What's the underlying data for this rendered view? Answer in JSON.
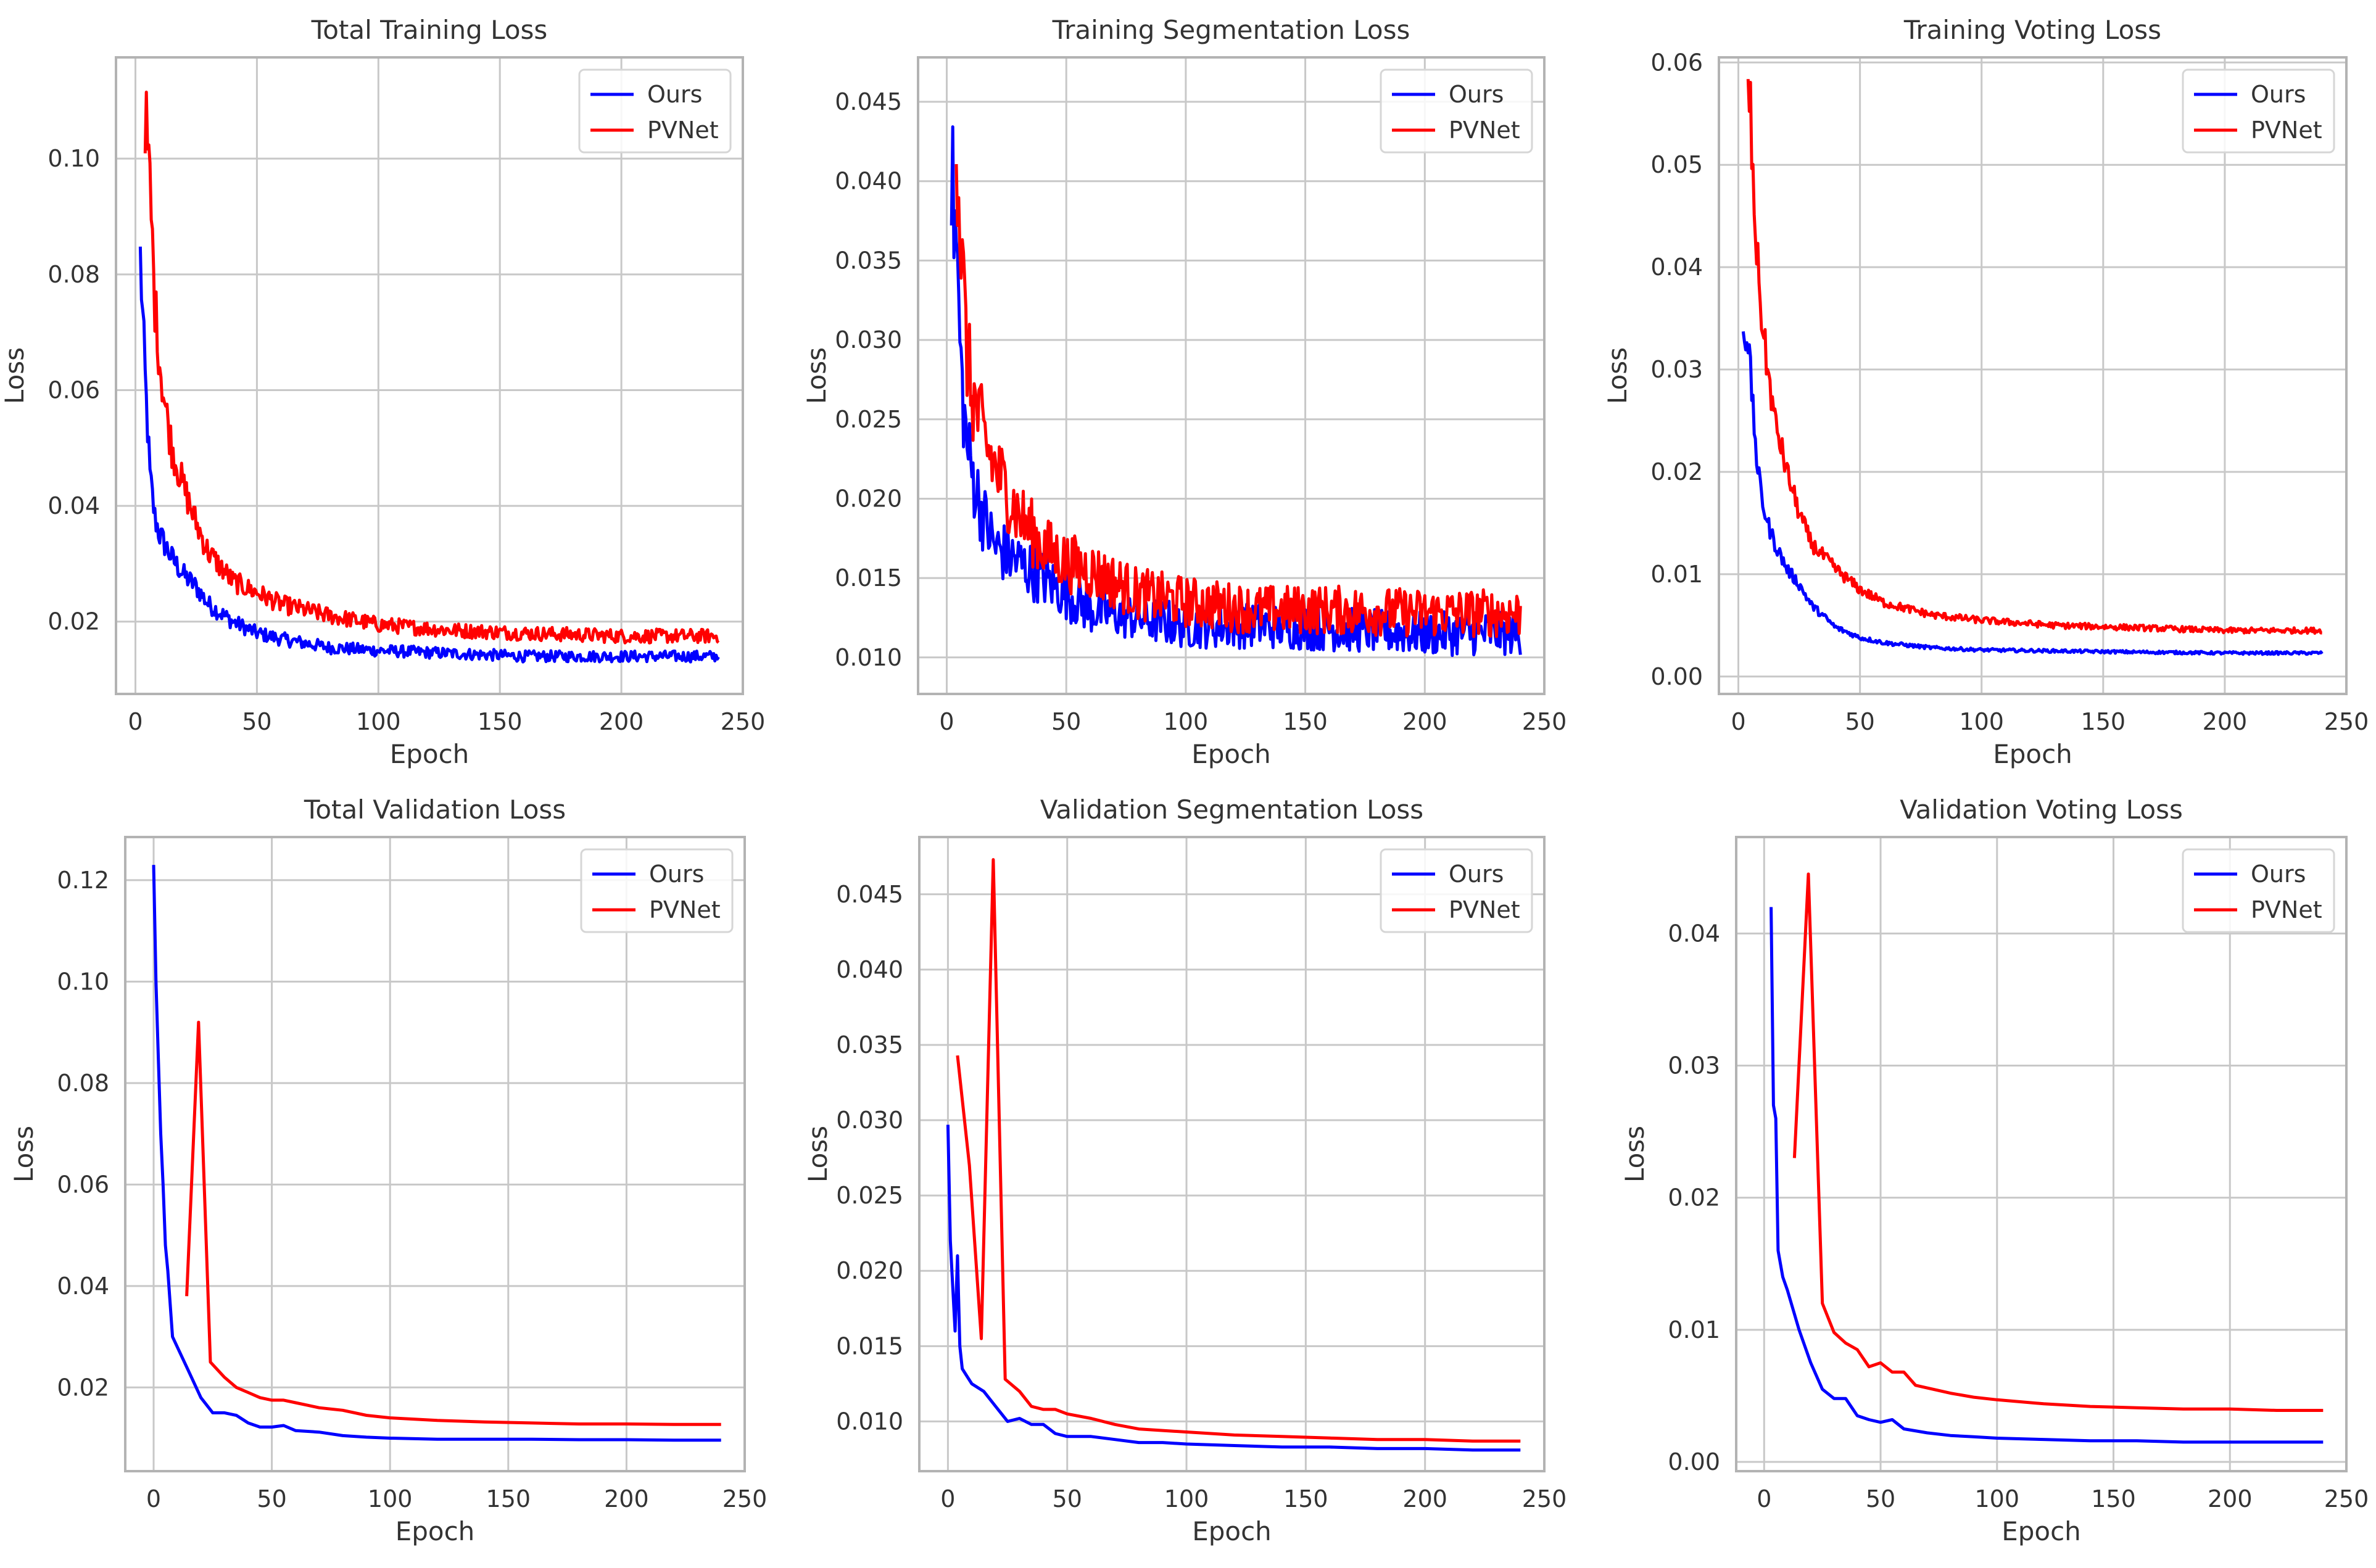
{
  "figure": {
    "colors": {
      "ours": "#0000ff",
      "pvnet": "#ff0000",
      "grid": "#c8c8c8",
      "frame": "#b3b3b3",
      "text": "#333333"
    }
  },
  "chart_data": [
    {
      "id": "total-training-loss",
      "type": "line",
      "title": "Total Training Loss",
      "xlabel": "Epoch",
      "ylabel": "Loss",
      "xlim": [
        -8,
        250
      ],
      "ylim": [
        0.0075,
        0.1175
      ],
      "xticks": [
        0,
        50,
        100,
        150,
        200,
        250
      ],
      "yticks": [
        0.02,
        0.04,
        0.06,
        0.08,
        0.1
      ],
      "ytick_labels": [
        "0.02",
        "0.04",
        "0.06",
        "0.08",
        "0.10"
      ],
      "legend": {
        "position": "top-right",
        "entries": [
          "Ours",
          "PVNet"
        ]
      },
      "noise": 0.07,
      "series": [
        {
          "name": "Ours",
          "color": "#0000ff",
          "x": [
            2,
            4,
            6,
            8,
            10,
            15,
            20,
            25,
            30,
            40,
            50,
            60,
            80,
            100,
            130,
            160,
            200,
            240
          ],
          "y": [
            0.083,
            0.062,
            0.045,
            0.038,
            0.035,
            0.031,
            0.028,
            0.026,
            0.023,
            0.02,
            0.018,
            0.017,
            0.0155,
            0.015,
            0.0145,
            0.014,
            0.014,
            0.014
          ]
        },
        {
          "name": "PVNet",
          "color": "#ff0000",
          "x": [
            4,
            6,
            8,
            10,
            12,
            15,
            20,
            25,
            30,
            40,
            50,
            60,
            80,
            100,
            130,
            160,
            200,
            240
          ],
          "y": [
            0.108,
            0.095,
            0.075,
            0.065,
            0.058,
            0.05,
            0.043,
            0.037,
            0.032,
            0.027,
            0.025,
            0.023,
            0.021,
            0.0195,
            0.0185,
            0.018,
            0.0175,
            0.0175
          ]
        }
      ]
    },
    {
      "id": "training-segmentation-loss",
      "type": "line",
      "title": "Training Segmentation Loss",
      "xlabel": "Epoch",
      "ylabel": "Loss",
      "xlim": [
        -12,
        250
      ],
      "ylim": [
        0.0077,
        0.0478
      ],
      "xticks": [
        0,
        50,
        100,
        150,
        200,
        250
      ],
      "yticks": [
        0.01,
        0.015,
        0.02,
        0.025,
        0.03,
        0.035,
        0.04,
        0.045
      ],
      "ytick_labels": [
        "0.010",
        "0.015",
        "0.020",
        "0.025",
        "0.030",
        "0.035",
        "0.040",
        "0.045"
      ],
      "legend": {
        "position": "top-right",
        "entries": [
          "Ours",
          "PVNet"
        ]
      },
      "noise": 0.12,
      "series": [
        {
          "name": "Ours",
          "color": "#0000ff",
          "x": [
            2,
            4,
            6,
            8,
            10,
            15,
            20,
            30,
            40,
            50,
            60,
            80,
            100,
            130,
            160,
            200,
            240
          ],
          "y": [
            0.04,
            0.036,
            0.028,
            0.024,
            0.022,
            0.019,
            0.017,
            0.016,
            0.015,
            0.014,
            0.013,
            0.0125,
            0.012,
            0.012,
            0.0118,
            0.0115,
            0.0115
          ]
        },
        {
          "name": "PVNet",
          "color": "#ff0000",
          "x": [
            4,
            6,
            8,
            10,
            15,
            20,
            30,
            40,
            50,
            60,
            80,
            100,
            130,
            160,
            200,
            240
          ],
          "y": [
            0.043,
            0.036,
            0.03,
            0.027,
            0.024,
            0.022,
            0.019,
            0.017,
            0.016,
            0.0155,
            0.014,
            0.0135,
            0.013,
            0.013,
            0.0128,
            0.0128
          ]
        }
      ]
    },
    {
      "id": "training-voting-loss",
      "type": "line",
      "title": "Training Voting Loss",
      "xlabel": "Epoch",
      "ylabel": "Loss",
      "xlim": [
        -8,
        250
      ],
      "ylim": [
        -0.0017,
        0.0605
      ],
      "xticks": [
        0,
        50,
        100,
        150,
        200,
        250
      ],
      "yticks": [
        0.0,
        0.01,
        0.02,
        0.03,
        0.04,
        0.05,
        0.06
      ],
      "ytick_labels": [
        "0.00",
        "0.01",
        "0.02",
        "0.03",
        "0.04",
        "0.05",
        "0.06"
      ],
      "legend": {
        "position": "top-right",
        "entries": [
          "Ours",
          "PVNet"
        ]
      },
      "noise": 0.06,
      "series": [
        {
          "name": "Ours",
          "color": "#0000ff",
          "x": [
            2,
            4,
            6,
            8,
            10,
            12,
            15,
            20,
            25,
            30,
            40,
            50,
            60,
            80,
            100,
            130,
            160,
            200,
            240
          ],
          "y": [
            0.034,
            0.033,
            0.026,
            0.02,
            0.017,
            0.015,
            0.013,
            0.0105,
            0.009,
            0.007,
            0.0048,
            0.0038,
            0.0033,
            0.0028,
            0.0026,
            0.0025,
            0.0024,
            0.0023,
            0.0023
          ]
        },
        {
          "name": "PVNet",
          "color": "#ff0000",
          "x": [
            4,
            5,
            6,
            8,
            10,
            12,
            15,
            20,
            25,
            30,
            40,
            50,
            60,
            80,
            100,
            130,
            160,
            200,
            240
          ],
          "y": [
            0.057,
            0.055,
            0.048,
            0.04,
            0.034,
            0.03,
            0.025,
            0.02,
            0.016,
            0.013,
            0.0105,
            0.0085,
            0.0072,
            0.006,
            0.0055,
            0.005,
            0.0048,
            0.0045,
            0.0045
          ]
        }
      ]
    },
    {
      "id": "total-validation-loss",
      "type": "line",
      "title": "Total Validation Loss",
      "xlabel": "Epoch",
      "ylabel": "Loss",
      "xlim": [
        -12,
        250
      ],
      "ylim": [
        0.0035,
        0.1285
      ],
      "xticks": [
        0,
        50,
        100,
        150,
        200,
        250
      ],
      "yticks": [
        0.02,
        0.04,
        0.06,
        0.08,
        0.1,
        0.12
      ],
      "ytick_labels": [
        "0.02",
        "0.04",
        "0.06",
        "0.08",
        "0.10",
        "0.12"
      ],
      "legend": {
        "position": "top-right",
        "entries": [
          "Ours",
          "PVNet"
        ]
      },
      "noise": 0,
      "series": [
        {
          "name": "Ours",
          "color": "#0000ff",
          "x": [
            0,
            1,
            2,
            3,
            4,
            5,
            6,
            8,
            10,
            15,
            20,
            25,
            30,
            35,
            40,
            45,
            50,
            55,
            60,
            70,
            80,
            90,
            100,
            120,
            140,
            160,
            180,
            200,
            220,
            240
          ],
          "y": [
            0.123,
            0.1,
            0.085,
            0.07,
            0.06,
            0.048,
            0.043,
            0.03,
            0.028,
            0.023,
            0.018,
            0.015,
            0.015,
            0.0145,
            0.013,
            0.0122,
            0.0122,
            0.0125,
            0.0115,
            0.0112,
            0.0105,
            0.0102,
            0.01,
            0.0098,
            0.0098,
            0.0098,
            0.0097,
            0.0097,
            0.0096,
            0.0096
          ]
        },
        {
          "name": "PVNet",
          "color": "#ff0000",
          "x": [
            14,
            19,
            24,
            30,
            35,
            40,
            45,
            50,
            55,
            60,
            65,
            70,
            80,
            90,
            100,
            120,
            140,
            160,
            180,
            200,
            220,
            240
          ],
          "y": [
            0.038,
            0.092,
            0.025,
            0.022,
            0.02,
            0.019,
            0.018,
            0.0175,
            0.0175,
            0.017,
            0.0165,
            0.016,
            0.0155,
            0.0145,
            0.014,
            0.0135,
            0.0132,
            0.013,
            0.0128,
            0.0128,
            0.0127,
            0.0127
          ]
        }
      ]
    },
    {
      "id": "validation-segmentation-loss",
      "type": "line",
      "title": "Validation Segmentation Loss",
      "xlabel": "Epoch",
      "ylabel": "Loss",
      "xlim": [
        -12,
        250
      ],
      "ylim": [
        0.0067,
        0.0488
      ],
      "xticks": [
        0,
        50,
        100,
        150,
        200,
        250
      ],
      "yticks": [
        0.01,
        0.015,
        0.02,
        0.025,
        0.03,
        0.035,
        0.04,
        0.045
      ],
      "ytick_labels": [
        "0.010",
        "0.015",
        "0.020",
        "0.025",
        "0.030",
        "0.035",
        "0.040",
        "0.045"
      ],
      "legend": {
        "position": "top-right",
        "entries": [
          "Ours",
          "PVNet"
        ]
      },
      "noise": 0,
      "series": [
        {
          "name": "Ours",
          "color": "#0000ff",
          "x": [
            0,
            1,
            2,
            3,
            4,
            5,
            6,
            8,
            10,
            15,
            20,
            25,
            30,
            35,
            40,
            45,
            50,
            60,
            70,
            80,
            90,
            100,
            120,
            140,
            160,
            180,
            200,
            220,
            240
          ],
          "y": [
            0.0297,
            0.022,
            0.019,
            0.016,
            0.021,
            0.015,
            0.0135,
            0.013,
            0.0125,
            0.012,
            0.011,
            0.01,
            0.0102,
            0.0098,
            0.0098,
            0.0092,
            0.009,
            0.009,
            0.0088,
            0.0086,
            0.0086,
            0.0085,
            0.0084,
            0.0083,
            0.0083,
            0.0082,
            0.0082,
            0.0081,
            0.0081
          ]
        },
        {
          "name": "PVNet",
          "color": "#ff0000",
          "x": [
            4,
            9,
            14,
            19,
            24,
            30,
            35,
            40,
            45,
            50,
            60,
            70,
            80,
            90,
            100,
            120,
            140,
            160,
            180,
            200,
            220,
            240
          ],
          "y": [
            0.0343,
            0.027,
            0.0155,
            0.0473,
            0.0128,
            0.012,
            0.011,
            0.0108,
            0.0108,
            0.0105,
            0.0102,
            0.0098,
            0.0095,
            0.0094,
            0.0093,
            0.0091,
            0.009,
            0.0089,
            0.0088,
            0.0088,
            0.0087,
            0.0087
          ]
        }
      ]
    },
    {
      "id": "validation-voting-loss",
      "type": "line",
      "title": "Validation Voting Loss",
      "xlabel": "Epoch",
      "ylabel": "Loss",
      "xlim": [
        -12,
        250
      ],
      "ylim": [
        -0.0007,
        0.0473
      ],
      "xticks": [
        0,
        50,
        100,
        150,
        200,
        250
      ],
      "yticks": [
        0.0,
        0.01,
        0.02,
        0.03,
        0.04
      ],
      "ytick_labels": [
        "0.00",
        "0.01",
        "0.02",
        "0.03",
        "0.04"
      ],
      "legend": {
        "position": "top-right",
        "entries": [
          "Ours",
          "PVNet"
        ]
      },
      "noise": 0,
      "series": [
        {
          "name": "Ours",
          "color": "#0000ff",
          "x": [
            3,
            4,
            5,
            6,
            7,
            8,
            10,
            15,
            20,
            25,
            30,
            35,
            40,
            45,
            50,
            55,
            60,
            70,
            80,
            90,
            100,
            120,
            140,
            160,
            180,
            200,
            220,
            240
          ],
          "y": [
            0.042,
            0.027,
            0.026,
            0.016,
            0.015,
            0.014,
            0.013,
            0.01,
            0.0075,
            0.0055,
            0.0048,
            0.0048,
            0.0035,
            0.0032,
            0.003,
            0.0032,
            0.0025,
            0.0022,
            0.002,
            0.0019,
            0.0018,
            0.0017,
            0.0016,
            0.0016,
            0.0015,
            0.0015,
            0.0015,
            0.0015
          ]
        },
        {
          "name": "PVNet",
          "color": "#ff0000",
          "x": [
            13,
            19,
            25,
            30,
            35,
            40,
            45,
            50,
            55,
            60,
            65,
            70,
            80,
            90,
            100,
            120,
            140,
            160,
            180,
            200,
            220,
            240
          ],
          "y": [
            0.023,
            0.0445,
            0.012,
            0.0098,
            0.009,
            0.0085,
            0.0072,
            0.0075,
            0.0068,
            0.0068,
            0.0058,
            0.0056,
            0.0052,
            0.0049,
            0.0047,
            0.0044,
            0.0042,
            0.0041,
            0.004,
            0.004,
            0.0039,
            0.0039
          ]
        }
      ]
    }
  ]
}
